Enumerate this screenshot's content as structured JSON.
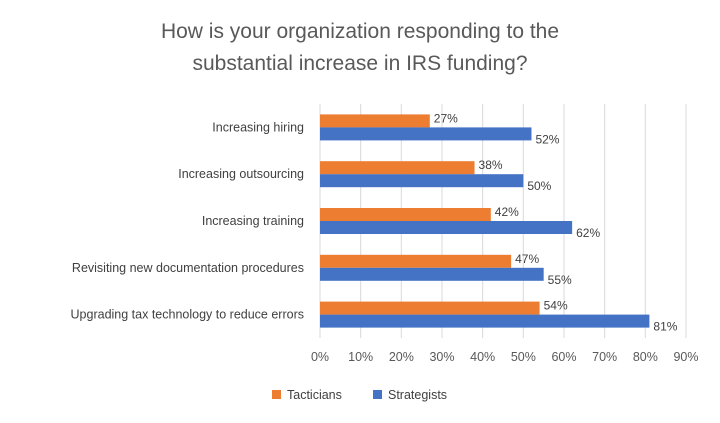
{
  "chart_data": {
    "type": "bar",
    "orientation": "horizontal",
    "title": "How is your organization responding to the substantial increase in IRS funding?",
    "title_lines": [
      "How is your organization responding to the",
      "substantial increase in IRS funding?"
    ],
    "categories": [
      "Increasing hiring",
      "Increasing outsourcing",
      "Increasing training",
      "Revisiting new documentation procedures",
      "Upgrading tax technology to reduce errors"
    ],
    "series": [
      {
        "name": "Tacticians",
        "color": "#ED7D31",
        "values": [
          27,
          38,
          42,
          47,
          54
        ],
        "labels": [
          "27%",
          "38%",
          "42%",
          "47%",
          "54%"
        ]
      },
      {
        "name": "Strategists",
        "color": "#4472C4",
        "values": [
          52,
          50,
          62,
          55,
          81
        ],
        "labels": [
          "52%",
          "50%",
          "62%",
          "55%",
          "81%"
        ]
      }
    ],
    "xlim": [
      0,
      90
    ],
    "xticks": [
      "0%",
      "10%",
      "20%",
      "30%",
      "40%",
      "50%",
      "60%",
      "70%",
      "80%",
      "90%"
    ],
    "grid": true,
    "legend_position": "bottom",
    "legend": [
      "Tacticians",
      "Strategists"
    ]
  }
}
